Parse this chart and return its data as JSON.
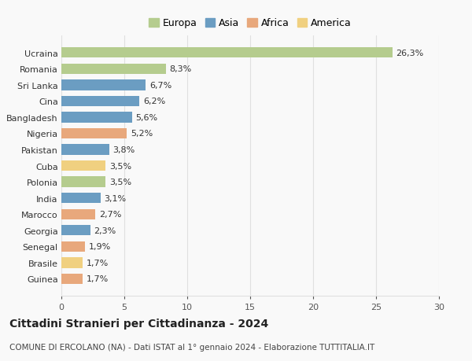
{
  "countries": [
    "Guinea",
    "Brasile",
    "Senegal",
    "Georgia",
    "Marocco",
    "India",
    "Polonia",
    "Cuba",
    "Pakistan",
    "Nigeria",
    "Bangladesh",
    "Cina",
    "Sri Lanka",
    "Romania",
    "Ucraina"
  ],
  "values": [
    1.7,
    1.7,
    1.9,
    2.3,
    2.7,
    3.1,
    3.5,
    3.5,
    3.8,
    5.2,
    5.6,
    6.2,
    6.7,
    8.3,
    26.3
  ],
  "labels": [
    "1,7%",
    "1,7%",
    "1,9%",
    "2,3%",
    "2,7%",
    "3,1%",
    "3,5%",
    "3,5%",
    "3,8%",
    "5,2%",
    "5,6%",
    "6,2%",
    "6,7%",
    "8,3%",
    "26,3%"
  ],
  "bar_colors": [
    "#e8a87c",
    "#f0d080",
    "#e8a87c",
    "#6b9dc2",
    "#e8a87c",
    "#6b9dc2",
    "#b5cc8e",
    "#f0d080",
    "#6b9dc2",
    "#e8a87c",
    "#6b9dc2",
    "#6b9dc2",
    "#6b9dc2",
    "#b5cc8e",
    "#b5cc8e"
  ],
  "title": "Cittadini Stranieri per Cittadinanza - 2024",
  "subtitle": "COMUNE DI ERCOLANO (NA) - Dati ISTAT al 1° gennaio 2024 - Elaborazione TUTTITALIA.IT",
  "xlim": [
    0,
    30
  ],
  "xticks": [
    0,
    5,
    10,
    15,
    20,
    25,
    30
  ],
  "background_color": "#f9f9f9",
  "grid_color": "#e0e0e0",
  "legend_labels": [
    "Europa",
    "Asia",
    "Africa",
    "America"
  ],
  "legend_colors": [
    "#b5cc8e",
    "#6b9dc2",
    "#e8a87c",
    "#f0d080"
  ],
  "label_fontsize": 8,
  "tick_fontsize": 8,
  "title_fontsize": 10,
  "subtitle_fontsize": 7.5
}
